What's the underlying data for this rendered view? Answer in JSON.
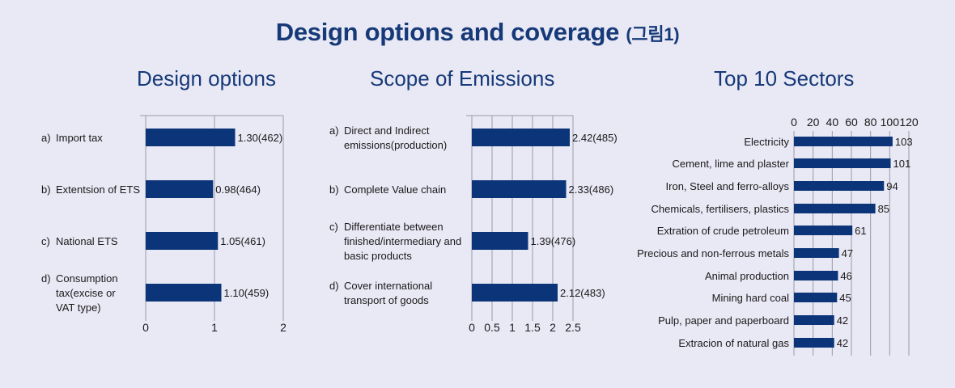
{
  "title": "Design options and coverage",
  "title_suffix": "(그림1)",
  "chart_data": [
    {
      "type": "bar",
      "orientation": "horizontal",
      "title": "Design options",
      "categories": [
        [
          "a)",
          "Import tax"
        ],
        [
          "b)",
          "Extentsion of ETS"
        ],
        [
          "c)",
          "National ETS"
        ],
        [
          "d)",
          "Consumption",
          "tax(excise or",
          "VAT type)"
        ]
      ],
      "values": [
        1.3,
        0.98,
        1.05,
        1.1
      ],
      "data_labels": [
        "1.30(462)",
        "0.98(464)",
        "1.05(461)",
        "1.10(459)"
      ],
      "xlim": [
        0,
        2
      ],
      "xticks": [
        "0",
        "1",
        "2"
      ],
      "grid": true,
      "color": "#0b3578"
    },
    {
      "type": "bar",
      "orientation": "horizontal",
      "title": "Scope of Emissions",
      "categories": [
        [
          "a)",
          "Direct and Indirect",
          "emissions(production)"
        ],
        [
          "b)",
          "Complete Value chain"
        ],
        [
          "c)",
          "Differentiate between",
          "finished/intermediary and",
          "basic products"
        ],
        [
          "d)",
          "Cover international",
          "transport of goods"
        ]
      ],
      "values": [
        2.42,
        2.33,
        1.39,
        2.12
      ],
      "data_labels": [
        "2.42(485)",
        "2.33(486)",
        "1.39(476)",
        "2.12(483)"
      ],
      "xlim": [
        0,
        2.5
      ],
      "xticks": [
        "0",
        "0.5",
        "1",
        "1.5",
        "2",
        "2.5"
      ],
      "grid": true,
      "color": "#0b3578"
    },
    {
      "type": "bar",
      "orientation": "horizontal",
      "title": "Top 10 Sectors",
      "categories": [
        [
          "Electricity"
        ],
        [
          "Cement, lime and plaster"
        ],
        [
          "Iron, Steel and ferro-alloys"
        ],
        [
          "Chemicals, fertilisers, plastics"
        ],
        [
          "Extration of crude petroleum"
        ],
        [
          "Precious and non-ferrous metals"
        ],
        [
          "Animal production"
        ],
        [
          "Mining hard coal"
        ],
        [
          "Pulp, paper and paperboard"
        ],
        [
          "Extracion of natural gas"
        ]
      ],
      "values": [
        103,
        101,
        94,
        85,
        61,
        47,
        46,
        45,
        42,
        42
      ],
      "data_labels": [
        "103",
        "101",
        "94",
        "85",
        "61",
        "47",
        "46",
        "45",
        "42",
        "42"
      ],
      "xlim": [
        0,
        120
      ],
      "xticks": [
        "0",
        "20",
        "40",
        "60",
        "80",
        "100",
        "120"
      ],
      "xaxis_position": "top",
      "grid": true,
      "color": "#0b3578"
    }
  ]
}
